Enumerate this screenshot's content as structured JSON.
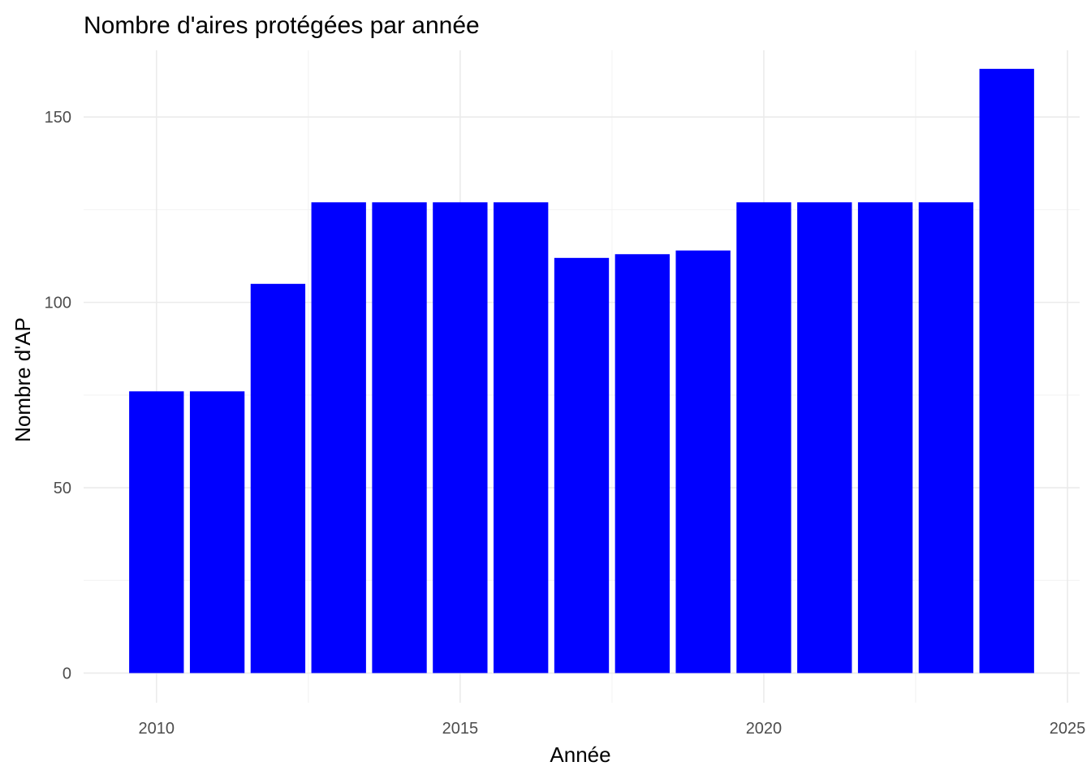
{
  "chart_data": {
    "type": "bar",
    "title": "Nombre d'aires protégées par année",
    "xlabel": "Année",
    "ylabel": "Nombre d'AP",
    "x": [
      2010,
      2011,
      2012,
      2013,
      2014,
      2015,
      2016,
      2017,
      2018,
      2019,
      2020,
      2021,
      2022,
      2023,
      2024
    ],
    "values": [
      76,
      76,
      105,
      127,
      127,
      127,
      127,
      112,
      113,
      114,
      127,
      127,
      127,
      127,
      163
    ],
    "xlim": [
      2008.8,
      2025.2
    ],
    "ylim": [
      -8,
      168
    ],
    "x_ticks": [
      2010,
      2015,
      2020,
      2025
    ],
    "x_tick_labels": [
      "2010",
      "2015",
      "2020",
      "2025"
    ],
    "y_ticks": [
      0,
      50,
      100,
      150
    ],
    "y_tick_labels": [
      "0",
      "50",
      "100",
      "150"
    ],
    "bar_color": "#0000ff",
    "grid": true,
    "legend": "none"
  }
}
